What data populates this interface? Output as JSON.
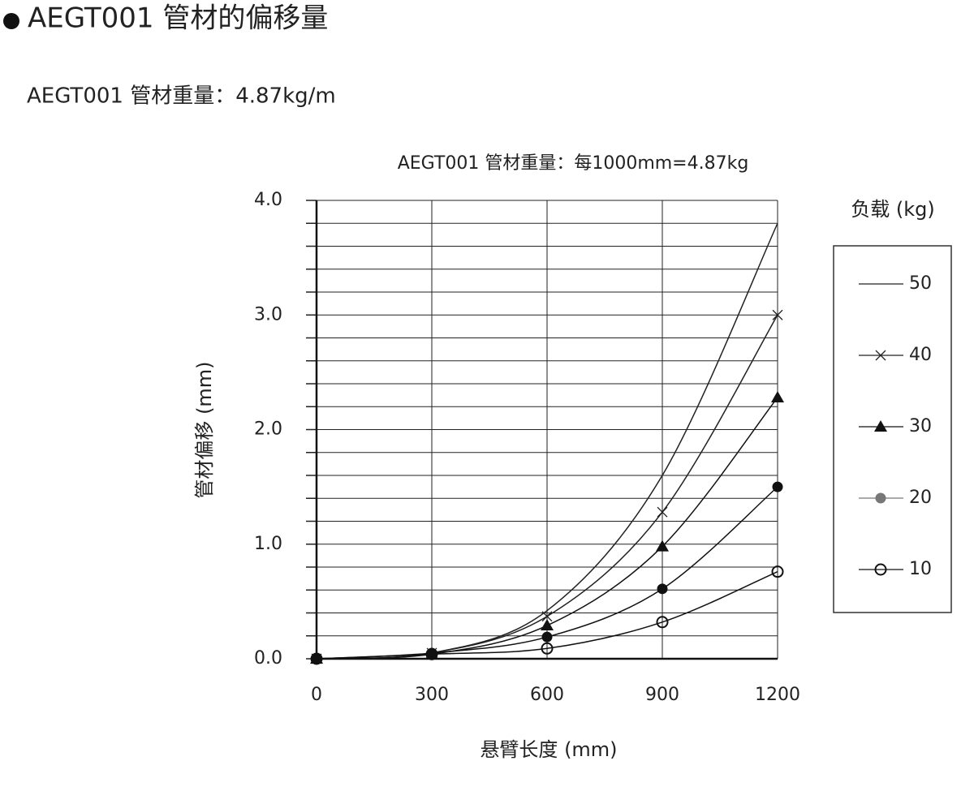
{
  "header": {
    "title": "AEGT001 管材的偏移量",
    "subtitle": "AEGT001 管材重量：4.87kg/m"
  },
  "chart_data": {
    "type": "line",
    "title": "AEGT001  管材重量：每1000mm=4.87kg",
    "x_label": "悬臂长度 (mm)",
    "y_label": "管材偏移 (mm)",
    "legend_title": "负载 (kg)",
    "x": [
      0,
      300,
      600,
      900,
      1200
    ],
    "xlim": [
      0,
      1200
    ],
    "xticks": [
      0,
      300,
      600,
      900,
      1200
    ],
    "ylim": [
      0,
      4
    ],
    "yticks": [
      {
        "value": 0,
        "label": "0.0"
      },
      {
        "value": 1,
        "label": "1.0"
      },
      {
        "value": 2,
        "label": "2.0"
      },
      {
        "value": 3,
        "label": "3.0"
      },
      {
        "value": 4,
        "label": "4.0"
      }
    ],
    "y_minor_ticks": [
      0.2,
      0.4,
      0.6,
      0.8,
      1.2,
      1.4,
      1.6,
      1.8,
      2.2,
      2.4,
      2.6,
      2.8,
      3.2,
      3.4,
      3.6,
      3.8
    ],
    "grid": true,
    "series": [
      {
        "name": "50",
        "color": "#222222",
        "marker": "none",
        "values": [
          0,
          0.05,
          0.42,
          1.6,
          3.8
        ]
      },
      {
        "name": "40",
        "color": "#222222",
        "marker": "x",
        "values": [
          0,
          0.05,
          0.37,
          1.28,
          3.0
        ]
      },
      {
        "name": "30",
        "color": "#111111",
        "marker": "triangle",
        "values": [
          0,
          0.04,
          0.29,
          0.98,
          2.28
        ]
      },
      {
        "name": "20",
        "color": "#111111",
        "marker": "circle-filled",
        "values": [
          0,
          0.05,
          0.19,
          0.61,
          1.5
        ]
      },
      {
        "name": "10",
        "color": "#111111",
        "marker": "circle-open",
        "values": [
          0,
          0.04,
          0.09,
          0.32,
          0.76
        ]
      }
    ]
  }
}
